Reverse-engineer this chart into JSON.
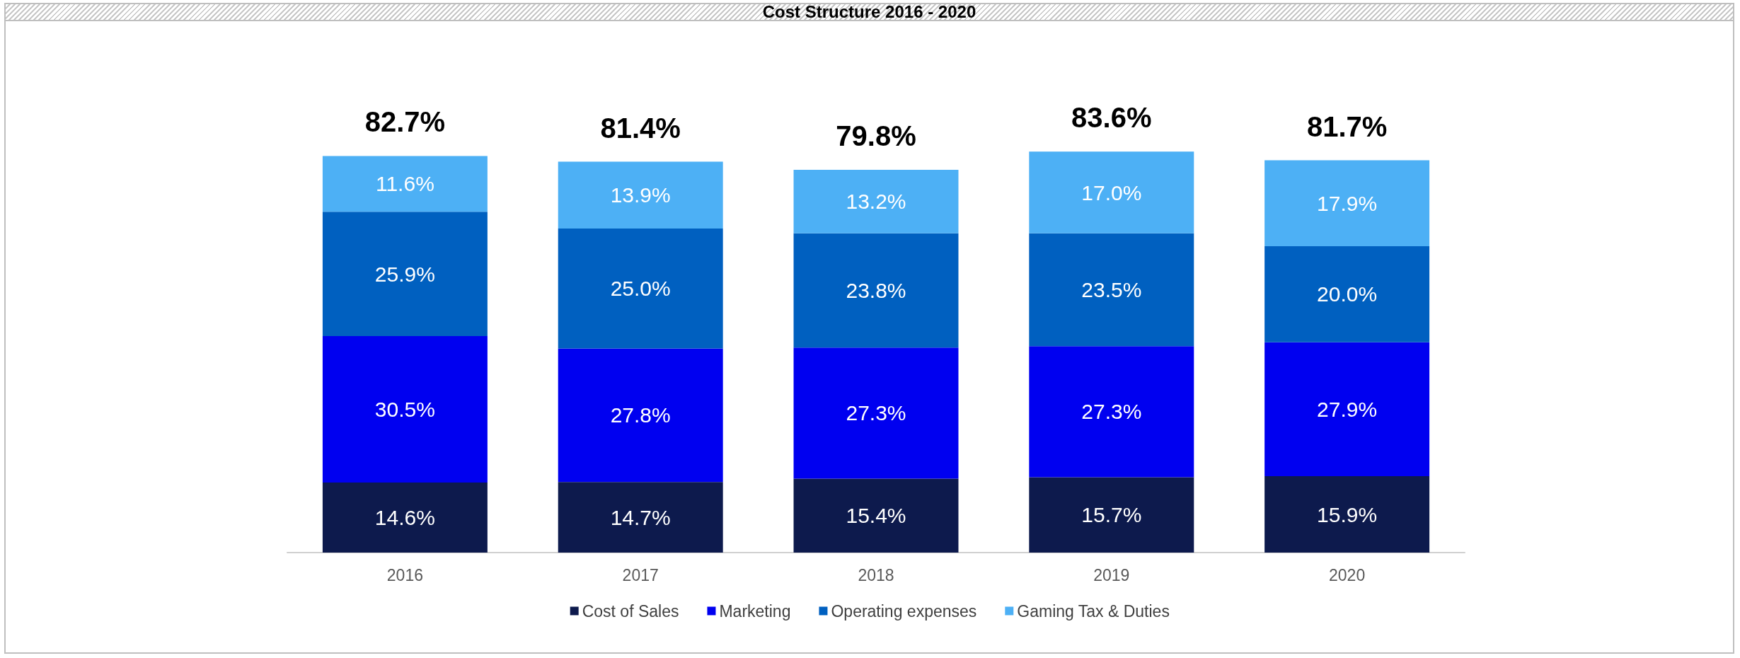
{
  "chart_data": {
    "type": "bar",
    "title": "Cost Structure  2016 - 2020",
    "stacked": true,
    "legend": "bottom",
    "grid": false,
    "categories": [
      "2016",
      "2017",
      "2018",
      "2019",
      "2020"
    ],
    "series": [
      {
        "name": "Cost of Sales",
        "color": "#0d1a4d",
        "values": [
          14.6,
          14.7,
          15.4,
          15.7,
          15.9
        ],
        "value_labels": [
          "14.6%",
          "14.7%",
          "15.4%",
          "15.7%",
          "15.9%"
        ]
      },
      {
        "name": "Marketing",
        "color": "#0000f0",
        "values": [
          30.5,
          27.8,
          27.3,
          27.3,
          27.9
        ],
        "value_labels": [
          "30.5%",
          "27.8%",
          "27.3%",
          "27.3%",
          "27.9%"
        ]
      },
      {
        "name": "Operating expenses",
        "color": "#0060c0",
        "values": [
          25.9,
          25.0,
          23.8,
          23.5,
          20.0
        ],
        "value_labels": [
          "25.9%",
          "25.0%",
          "23.8%",
          "23.5%",
          "20.0%"
        ]
      },
      {
        "name": "Gaming Tax & Duties",
        "color": "#4db0f5",
        "values": [
          11.6,
          13.9,
          13.2,
          17.0,
          17.9
        ],
        "value_labels": [
          "11.6%",
          "13.9%",
          "13.2%",
          "17.0%",
          "17.9%"
        ]
      }
    ],
    "totals": [
      "82.7%",
      "81.4%",
      "79.8%",
      "83.6%",
      "81.7%"
    ]
  }
}
